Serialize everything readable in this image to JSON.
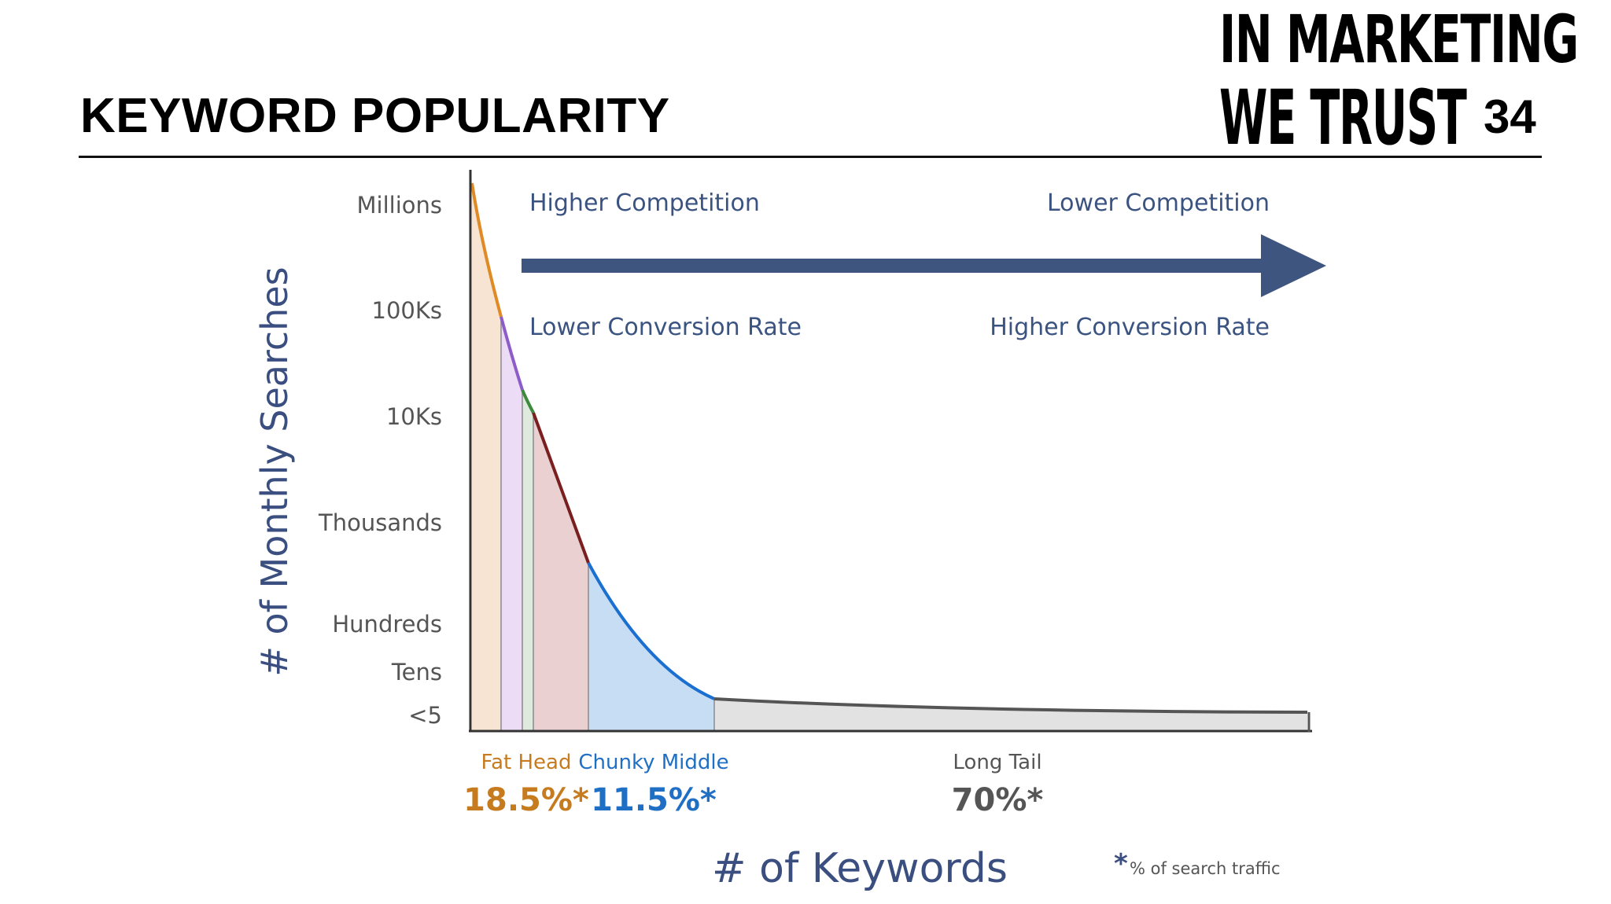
{
  "slide": {
    "title": "KEYWORD POPULARITY",
    "brand_line1": "IN MARKETING",
    "brand_line2": "WE TRUST",
    "page_number": "34"
  },
  "colors": {
    "fat_head": "#c77b1f",
    "chunky_middle": "#1f6fc5",
    "long_tail": "#555555",
    "arrow": "#3e5580"
  },
  "chart_data": {
    "type": "area",
    "xlabel": "# of Keywords",
    "ylabel": "# of Monthly Searches",
    "y_ticks": [
      "Millions",
      "100Ks",
      "10Ks",
      "Thousands",
      "Hundreds",
      "Tens",
      "<5"
    ],
    "arrow": {
      "top_left": "Higher Competition",
      "top_right": "Lower Competition",
      "bottom_left": "Lower Conversion Rate",
      "bottom_right": "Higher Conversion Rate"
    },
    "segments": [
      {
        "name": "Fat Head",
        "value": "18.5%*"
      },
      {
        "name": "Chunky Middle",
        "value": "11.5%*"
      },
      {
        "name": "Long Tail",
        "value": "70%*"
      }
    ],
    "traffic_share_percent": [
      18.5,
      11.5,
      70
    ],
    "footnote": {
      "mark": "*",
      "text": "% of search traffic"
    }
  }
}
